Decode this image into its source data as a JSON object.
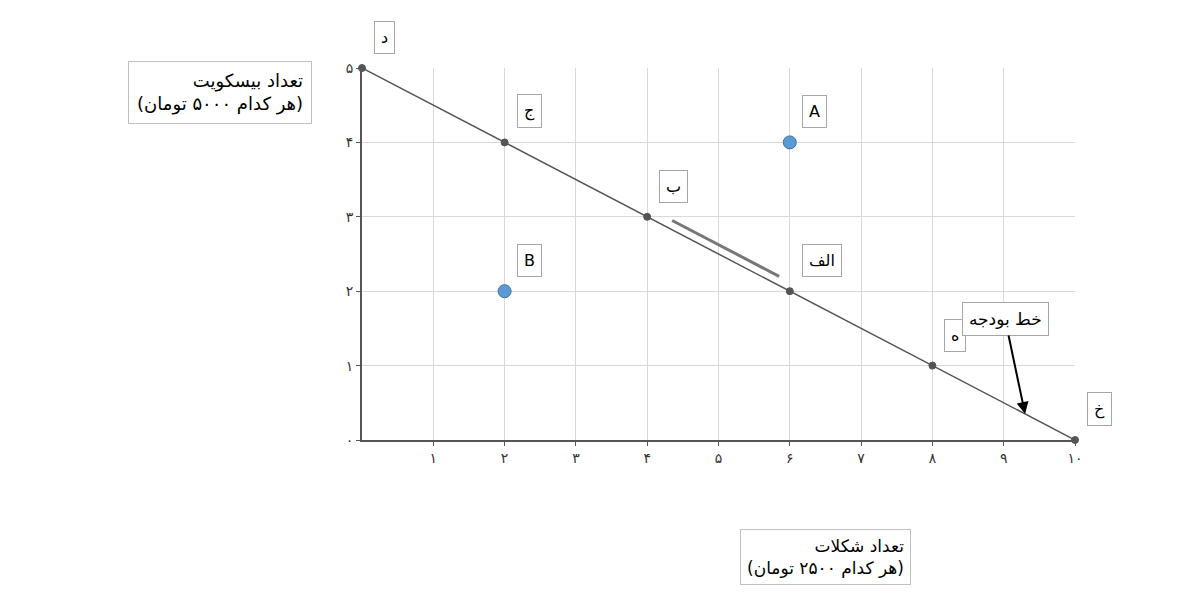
{
  "chart_data": {
    "type": "line",
    "grid": true,
    "y_label": [
      "تعداد بیسکویت",
      "(هر کدام ۵۰۰۰ تومان)"
    ],
    "x_label": [
      "تعداد شکلات",
      "(هر کدام ۲۵۰۰ تومان)"
    ],
    "xlim": [
      0,
      10
    ],
    "ylim": [
      0,
      5
    ],
    "xticks": [
      {
        "value": 1,
        "label": "۱"
      },
      {
        "value": 2,
        "label": "۲"
      },
      {
        "value": 3,
        "label": "۳"
      },
      {
        "value": 4,
        "label": "۴"
      },
      {
        "value": 5,
        "label": "۵"
      },
      {
        "value": 6,
        "label": "۶"
      },
      {
        "value": 7,
        "label": "۷"
      },
      {
        "value": 8,
        "label": "۸"
      },
      {
        "value": 9,
        "label": "۹"
      },
      {
        "value": 10,
        "label": "۱۰"
      }
    ],
    "yticks": [
      {
        "value": 0,
        "label": "۰"
      },
      {
        "value": 1,
        "label": "۱"
      },
      {
        "value": 2,
        "label": "۲"
      },
      {
        "value": 3,
        "label": "۳"
      },
      {
        "value": 4,
        "label": "۴"
      },
      {
        "value": 5,
        "label": "۵"
      }
    ],
    "series": [
      {
        "type": "line",
        "color": "#555555",
        "marker": "circle",
        "x": [
          0,
          2,
          4,
          6,
          8,
          10
        ],
        "values": [
          5,
          4,
          3,
          2,
          1,
          0
        ],
        "labels": [
          "د",
          "ج",
          "ب",
          "الف",
          "ه",
          "خ"
        ]
      },
      {
        "type": "scatter",
        "color": "#5b9bd5",
        "marker": "circle",
        "x": [
          6,
          2
        ],
        "values": [
          4,
          2
        ],
        "labels": [
          "A",
          "B"
        ]
      }
    ],
    "annotations": [
      {
        "text": "خط بودجه",
        "x": 9.3,
        "y": 0.35
      }
    ]
  }
}
